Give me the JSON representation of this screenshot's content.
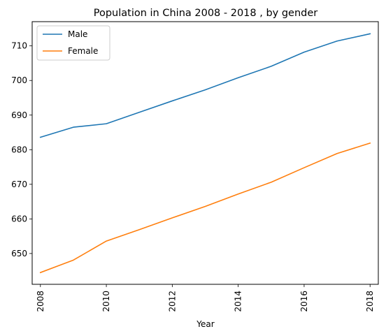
{
  "chart_data": {
    "type": "line",
    "title": "Population in China 2008 - 2018 , by gender",
    "xlabel": "Year",
    "ylabel": "",
    "x": [
      2008,
      2009,
      2010,
      2011,
      2012,
      2013,
      2014,
      2015,
      2016,
      2017,
      2018
    ],
    "xticks": [
      "2008",
      "2010",
      "2012",
      "2014",
      "2016",
      "2018"
    ],
    "yticks": [
      "650",
      "660",
      "670",
      "680",
      "690",
      "700",
      "710"
    ],
    "xlim": [
      2007.75,
      2018.25
    ],
    "ylim": [
      641.1,
      717.0
    ],
    "grid": false,
    "legend_position": "upper-left",
    "series": [
      {
        "name": "Male",
        "color": "#1f77b4",
        "values": [
          683.6,
          686.5,
          687.5,
          690.8,
          694.1,
          697.3,
          700.8,
          704.1,
          708.2,
          711.4,
          713.5
        ]
      },
      {
        "name": "Female",
        "color": "#ff7f0e",
        "values": [
          644.5,
          648.1,
          653.6,
          656.9,
          660.3,
          663.6,
          667.2,
          670.6,
          674.8,
          678.9,
          681.9
        ]
      }
    ]
  }
}
